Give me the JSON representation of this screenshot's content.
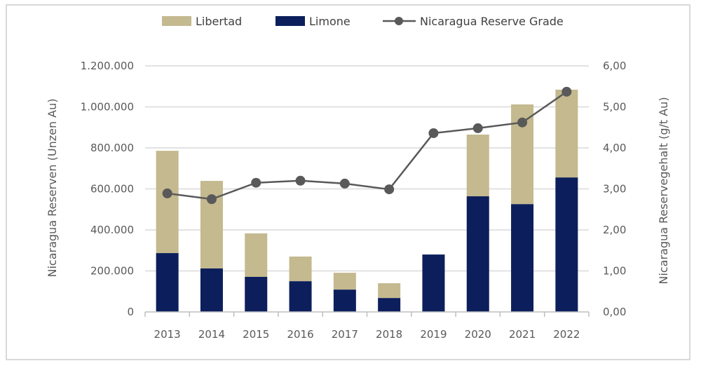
{
  "chart_data": {
    "type": "bar",
    "subtype": "stacked-bar-with-line-secondary-axis",
    "title": "",
    "categories": [
      "2013",
      "2014",
      "2015",
      "2016",
      "2017",
      "2018",
      "2019",
      "2020",
      "2021",
      "2022"
    ],
    "series": [
      {
        "name": "Limone",
        "kind": "bar",
        "axis": "left",
        "color": "#0c1f5c",
        "values": [
          287000,
          212000,
          171000,
          150000,
          109000,
          68000,
          280000,
          564000,
          526000,
          656000
        ]
      },
      {
        "name": "Libertad",
        "kind": "bar",
        "axis": "left",
        "color": "#c4b98f",
        "values": [
          499000,
          427000,
          212000,
          120000,
          82000,
          72000,
          0,
          301000,
          486000,
          428000
        ]
      },
      {
        "name": "Nicaragua Reserve Grade",
        "kind": "line",
        "axis": "right",
        "color": "#595959",
        "values": [
          2.89,
          2.75,
          3.15,
          3.2,
          3.13,
          2.99,
          4.36,
          4.48,
          4.62,
          5.37
        ]
      }
    ],
    "legend": {
      "position": "top",
      "entries": [
        "Libertad",
        "Limone",
        "Nicaragua Reserve Grade"
      ]
    },
    "xlabel": "",
    "ylabel": "Nicaragua Reserven (Unzen Au)",
    "ylabel_right": "Nicaragua Reservegehalt (g/t Au)",
    "ylim": [
      0,
      1200000
    ],
    "ylim_right": [
      0,
      6
    ],
    "yticks": [
      0,
      200000,
      400000,
      600000,
      800000,
      1000000,
      1200000
    ],
    "ytick_labels": [
      "0",
      "200.000",
      "400.000",
      "600.000",
      "800.000",
      "1.000.000",
      "1.200.000"
    ],
    "yticks_right": [
      0,
      1,
      2,
      3,
      4,
      5,
      6
    ],
    "ytick_labels_right": [
      "0,00",
      "1,00",
      "2,00",
      "3,00",
      "4,00",
      "5,00",
      "6,00"
    ],
    "grid": true
  }
}
